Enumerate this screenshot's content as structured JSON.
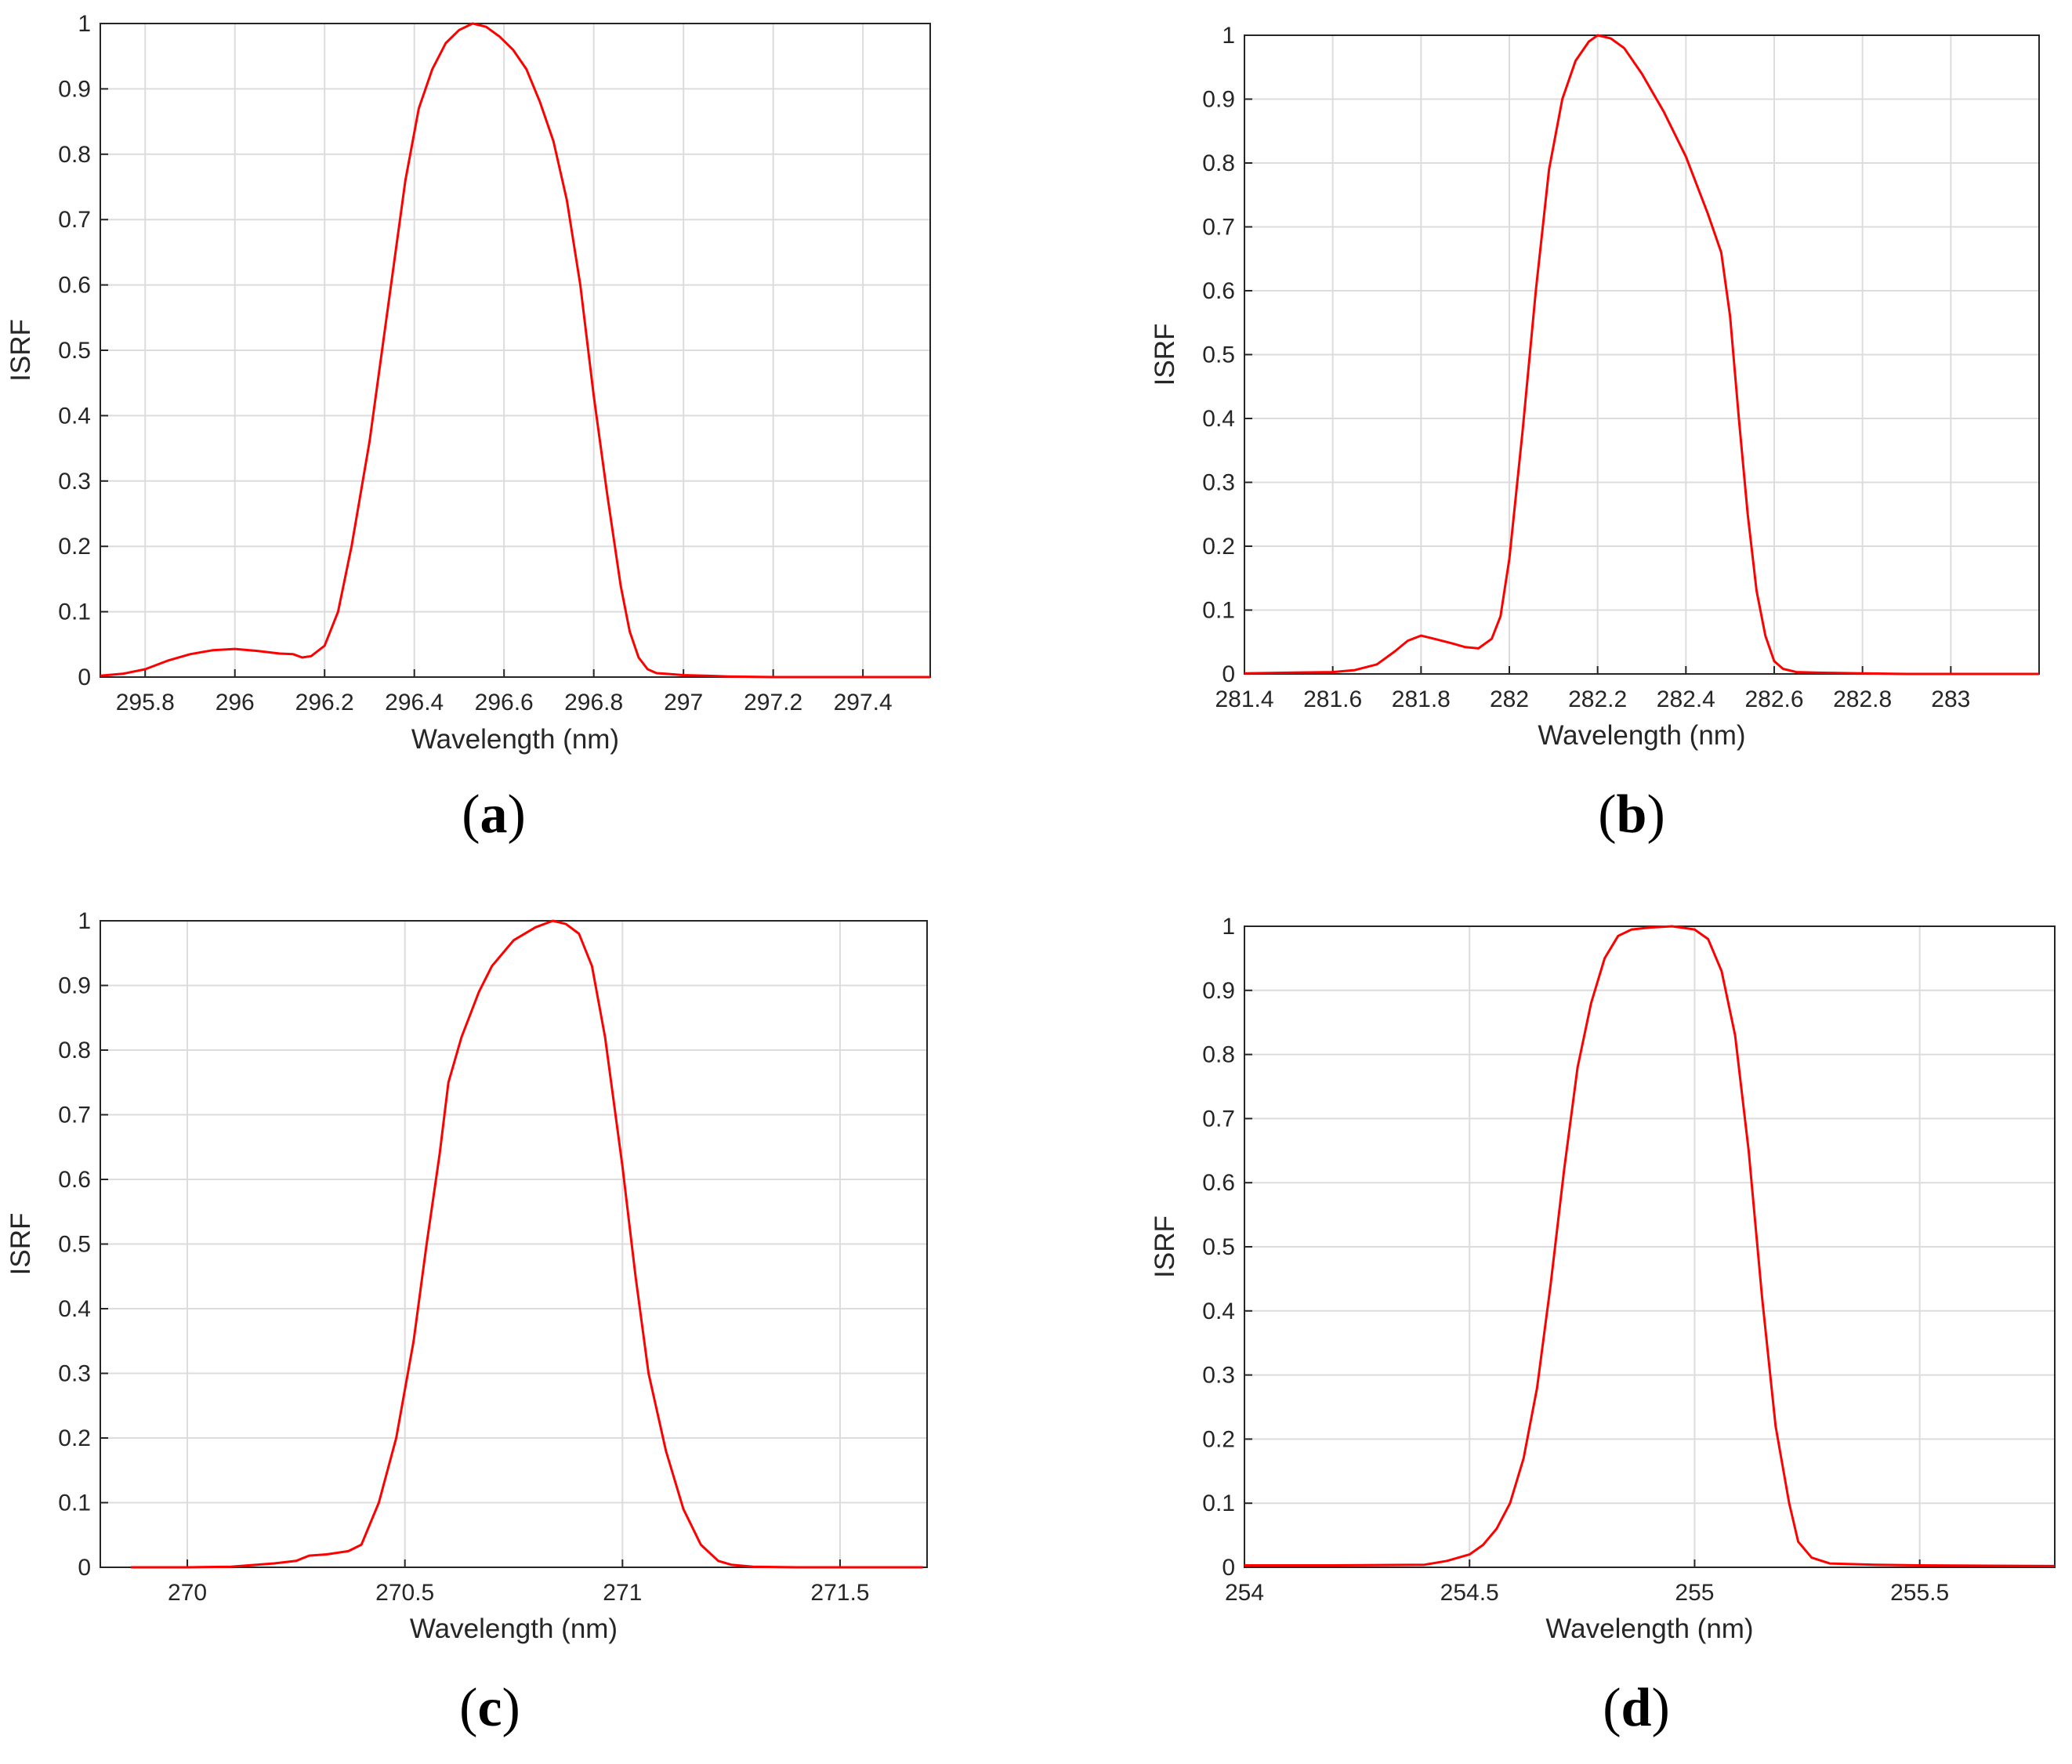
{
  "accent": "#ff0000",
  "captions": [
    "(a)",
    "(b)",
    "(c)",
    "(d)"
  ],
  "caption_letters": [
    "a",
    "b",
    "c",
    "d"
  ],
  "chart_data": [
    {
      "type": "line",
      "xlabel": "Wavelength (nm)",
      "ylabel": "ISRF",
      "xlim": [
        295.7,
        297.55
      ],
      "ylim": [
        0,
        1
      ],
      "xticks": [
        295.8,
        296,
        296.2,
        296.4,
        296.6,
        296.8,
        297,
        297.2,
        297.4
      ],
      "xtick_labels": [
        "295.8",
        "296",
        "296.2",
        "296.4",
        "296.6",
        "296.8",
        "297",
        "297.2",
        "297.4"
      ],
      "yticks": [
        0,
        0.1,
        0.2,
        0.3,
        0.4,
        0.5,
        0.6,
        0.7,
        0.8,
        0.9,
        1
      ],
      "ytick_labels": [
        "0",
        "0.1",
        "0.2",
        "0.3",
        "0.4",
        "0.5",
        "0.6",
        "0.7",
        "0.8",
        "0.9",
        "1"
      ],
      "grid": true,
      "series": [
        {
          "name": "ISRF",
          "color": "#ff0000",
          "x": [
            295.7,
            295.75,
            295.8,
            295.85,
            295.9,
            295.95,
            296.0,
            296.05,
            296.1,
            296.13,
            296.15,
            296.17,
            296.2,
            296.23,
            296.26,
            296.3,
            296.34,
            296.38,
            296.41,
            296.44,
            296.47,
            296.5,
            296.53,
            296.56,
            296.59,
            296.62,
            296.65,
            296.68,
            296.71,
            296.74,
            296.77,
            296.8,
            296.83,
            296.86,
            296.88,
            296.9,
            296.92,
            296.94,
            296.96,
            297.0,
            297.05,
            297.1,
            297.2,
            297.3,
            297.4,
            297.55
          ],
          "y": [
            0.002,
            0.005,
            0.012,
            0.025,
            0.035,
            0.041,
            0.043,
            0.04,
            0.036,
            0.035,
            0.03,
            0.032,
            0.048,
            0.1,
            0.2,
            0.36,
            0.56,
            0.76,
            0.87,
            0.93,
            0.97,
            0.99,
            1.0,
            0.995,
            0.98,
            0.96,
            0.93,
            0.88,
            0.82,
            0.73,
            0.6,
            0.43,
            0.28,
            0.14,
            0.07,
            0.03,
            0.012,
            0.006,
            0.005,
            0.003,
            0.002,
            0.001,
            0.0,
            0.0,
            0.0,
            0.0
          ]
        }
      ]
    },
    {
      "type": "line",
      "xlabel": "Wavelength (nm)",
      "ylabel": "ISRF",
      "xlim": [
        281.4,
        283.2
      ],
      "ylim": [
        0,
        1
      ],
      "xticks": [
        281.4,
        281.6,
        281.8,
        282,
        282.2,
        282.4,
        282.6,
        282.8,
        283
      ],
      "xtick_labels": [
        "281.4",
        "281.6",
        "281.8",
        "282",
        "282.2",
        "282.4",
        "282.6",
        "282.8",
        "283"
      ],
      "yticks": [
        0,
        0.1,
        0.2,
        0.3,
        0.4,
        0.5,
        0.6,
        0.7,
        0.8,
        0.9,
        1
      ],
      "ytick_labels": [
        "0",
        "0.1",
        "0.2",
        "0.3",
        "0.4",
        "0.5",
        "0.6",
        "0.7",
        "0.8",
        "0.9",
        "1"
      ],
      "grid": true,
      "series": [
        {
          "name": "ISRF",
          "color": "#ff0000",
          "x": [
            281.4,
            281.5,
            281.6,
            281.65,
            281.7,
            281.74,
            281.77,
            281.8,
            281.83,
            281.87,
            281.9,
            281.93,
            281.96,
            281.98,
            282.0,
            282.03,
            282.06,
            282.09,
            282.12,
            282.15,
            282.18,
            282.2,
            282.23,
            282.26,
            282.3,
            282.35,
            282.4,
            282.45,
            282.48,
            282.5,
            282.52,
            282.54,
            282.56,
            282.58,
            282.6,
            282.62,
            282.65,
            282.7,
            282.8,
            282.9,
            283.0,
            283.2
          ],
          "y": [
            0.001,
            0.002,
            0.003,
            0.006,
            0.015,
            0.035,
            0.052,
            0.06,
            0.055,
            0.048,
            0.042,
            0.04,
            0.055,
            0.09,
            0.18,
            0.38,
            0.6,
            0.79,
            0.9,
            0.96,
            0.99,
            1.0,
            0.995,
            0.98,
            0.94,
            0.88,
            0.81,
            0.72,
            0.66,
            0.56,
            0.4,
            0.25,
            0.13,
            0.06,
            0.02,
            0.008,
            0.003,
            0.002,
            0.001,
            0.0,
            0.0,
            0.0
          ]
        }
      ]
    },
    {
      "type": "line",
      "xlabel": "Wavelength (nm)",
      "ylabel": "ISRF",
      "xlim": [
        269.8,
        271.7
      ],
      "ylim": [
        0,
        1
      ],
      "xticks": [
        270,
        270.5,
        271,
        271.5
      ],
      "xtick_labels": [
        "270",
        "270.5",
        "271",
        "271.5"
      ],
      "yticks": [
        0,
        0.1,
        0.2,
        0.3,
        0.4,
        0.5,
        0.6,
        0.7,
        0.8,
        0.9,
        1
      ],
      "ytick_labels": [
        "0",
        "0.1",
        "0.2",
        "0.3",
        "0.4",
        "0.5",
        "0.6",
        "0.7",
        "0.8",
        "0.9",
        "1"
      ],
      "grid": true,
      "series": [
        {
          "name": "ISRF",
          "color": "#ff0000",
          "x": [
            269.87,
            270.0,
            270.1,
            270.2,
            270.25,
            270.28,
            270.32,
            270.37,
            270.4,
            270.44,
            270.48,
            270.52,
            270.55,
            270.58,
            270.6,
            270.63,
            270.67,
            270.7,
            270.75,
            270.8,
            270.84,
            270.87,
            270.9,
            270.93,
            270.96,
            271.0,
            271.03,
            271.06,
            271.1,
            271.14,
            271.18,
            271.22,
            271.25,
            271.3,
            271.4,
            271.5,
            271.69
          ],
          "y": [
            0.0,
            0.0,
            0.001,
            0.006,
            0.01,
            0.018,
            0.02,
            0.025,
            0.035,
            0.1,
            0.2,
            0.35,
            0.5,
            0.64,
            0.75,
            0.82,
            0.89,
            0.93,
            0.97,
            0.99,
            1.0,
            0.995,
            0.98,
            0.93,
            0.82,
            0.62,
            0.45,
            0.3,
            0.18,
            0.09,
            0.035,
            0.01,
            0.004,
            0.001,
            0.0,
            0.0,
            0.0
          ]
        }
      ]
    },
    {
      "type": "line",
      "xlabel": "Wavelength (nm)",
      "ylabel": "ISRF",
      "xlim": [
        254,
        255.8
      ],
      "ylim": [
        0,
        1
      ],
      "xticks": [
        254,
        254.5,
        255,
        255.5
      ],
      "xtick_labels": [
        "254",
        "254.5",
        "255",
        "255.5"
      ],
      "yticks": [
        0,
        0.1,
        0.2,
        0.3,
        0.4,
        0.5,
        0.6,
        0.7,
        0.8,
        0.9,
        1
      ],
      "ytick_labels": [
        "0",
        "0.1",
        "0.2",
        "0.3",
        "0.4",
        "0.5",
        "0.6",
        "0.7",
        "0.8",
        "0.9",
        "1"
      ],
      "grid": true,
      "series": [
        {
          "name": "ISRF",
          "color": "#ff0000",
          "x": [
            254.0,
            254.2,
            254.4,
            254.45,
            254.5,
            254.53,
            254.56,
            254.59,
            254.62,
            254.65,
            254.68,
            254.71,
            254.74,
            254.77,
            254.8,
            254.83,
            254.86,
            254.9,
            254.95,
            255.0,
            255.03,
            255.06,
            255.09,
            255.12,
            255.15,
            255.18,
            255.21,
            255.23,
            255.26,
            255.3,
            255.4,
            255.5,
            255.8
          ],
          "y": [
            0.003,
            0.003,
            0.004,
            0.01,
            0.02,
            0.035,
            0.06,
            0.1,
            0.17,
            0.28,
            0.44,
            0.62,
            0.78,
            0.88,
            0.95,
            0.985,
            0.995,
            0.998,
            1.0,
            0.995,
            0.98,
            0.93,
            0.83,
            0.65,
            0.42,
            0.22,
            0.1,
            0.04,
            0.015,
            0.006,
            0.004,
            0.003,
            0.002
          ]
        }
      ]
    }
  ]
}
